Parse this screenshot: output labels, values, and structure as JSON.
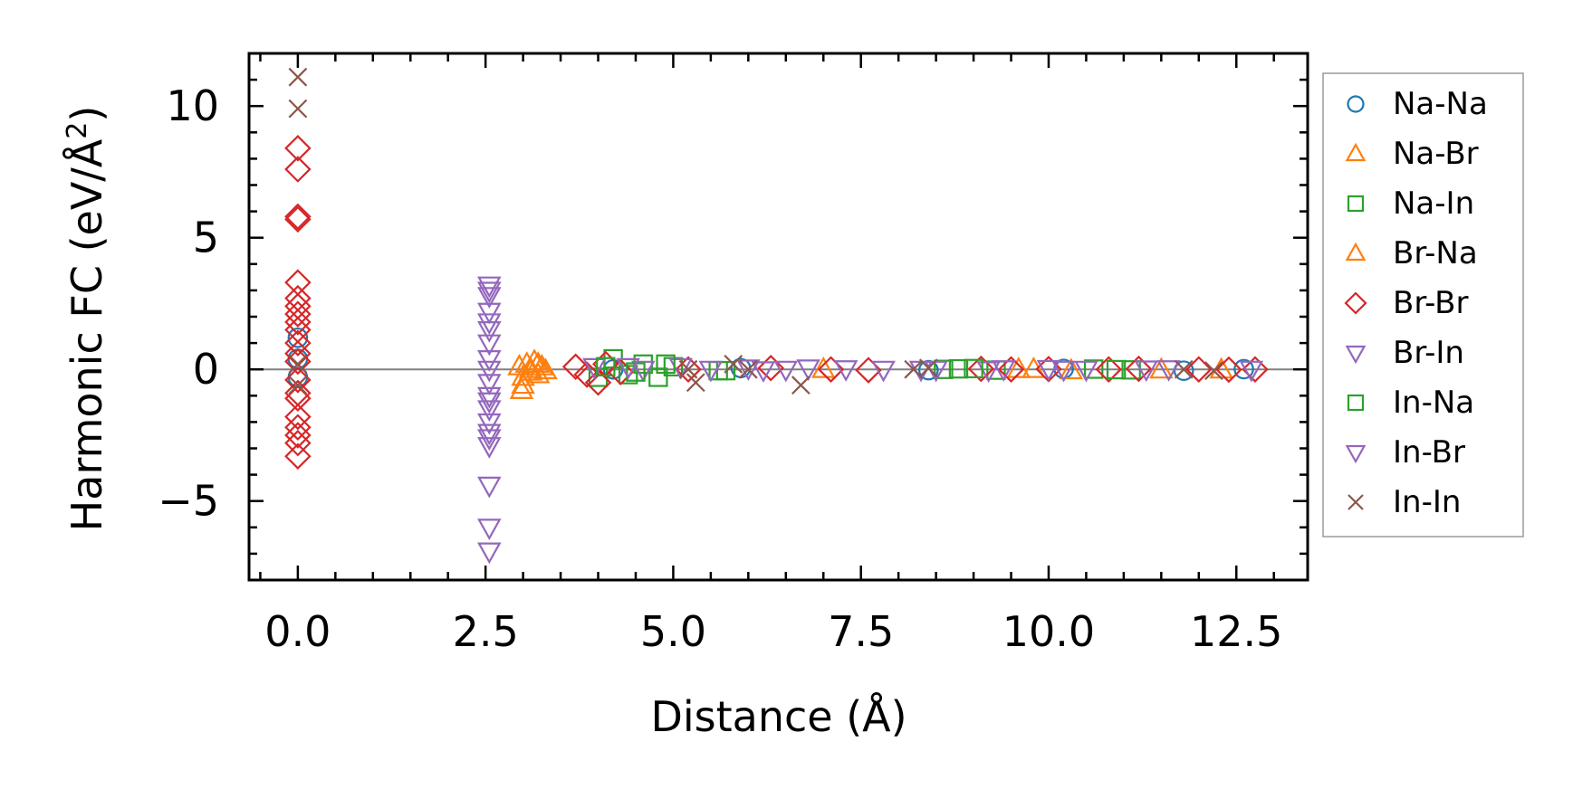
{
  "chart_data": {
    "type": "scatter",
    "xlabel": "Distance (Å)",
    "ylabel_main": "Harmonic FC (eV/Å",
    "ylabel_sup": "2",
    "ylabel_close": ")",
    "xlim": [
      -0.65,
      13.45
    ],
    "ylim": [
      -8,
      12
    ],
    "xticks": [
      0.0,
      2.5,
      5.0,
      7.5,
      10.0,
      12.5
    ],
    "xtick_labels": [
      "0.0",
      "2.5",
      "5.0",
      "7.5",
      "10.0",
      "12.5"
    ],
    "yticks": [
      -5,
      0,
      5,
      10
    ],
    "ytick_labels": [
      "−5",
      "0",
      "5",
      "10"
    ],
    "zero_line": 0,
    "legend_position": "outside-right",
    "series": [
      {
        "name": "Na-Na",
        "marker": "circle",
        "color": "#1f77b4",
        "points": [
          [
            0,
            1.2
          ],
          [
            0,
            0.4
          ],
          [
            0,
            -0.3
          ],
          [
            4.2,
            0.0
          ],
          [
            5.9,
            0.05
          ],
          [
            8.4,
            -0.03
          ],
          [
            10.2,
            0.02
          ],
          [
            11.8,
            -0.05
          ],
          [
            12.6,
            0.01
          ]
        ]
      },
      {
        "name": "Na-Br",
        "marker": "triangle-up",
        "color": "#ff7f0e",
        "points": [
          [
            2.95,
            0.1
          ],
          [
            2.98,
            -0.8
          ],
          [
            3.0,
            -0.3
          ],
          [
            3.05,
            0.2
          ],
          [
            3.1,
            -0.1
          ],
          [
            3.15,
            0.3
          ],
          [
            3.2,
            -0.2
          ],
          [
            3.25,
            0.1
          ],
          [
            3.3,
            -0.05
          ],
          [
            9.6,
            0.0
          ],
          [
            10.3,
            -0.05
          ],
          [
            11.5,
            -0.02
          ]
        ]
      },
      {
        "name": "Na-In",
        "marker": "square",
        "color": "#2ca02c",
        "points": [
          [
            4.0,
            -0.3
          ],
          [
            4.2,
            0.4
          ],
          [
            4.4,
            -0.2
          ],
          [
            4.6,
            0.2
          ],
          [
            4.8,
            -0.3
          ],
          [
            5.0,
            0.1
          ],
          [
            5.6,
            -0.05
          ],
          [
            8.8,
            0.02
          ],
          [
            9.3,
            -0.03
          ],
          [
            10.6,
            0.01
          ],
          [
            11.1,
            -0.02
          ]
        ]
      },
      {
        "name": "Br-Na",
        "marker": "triangle-up",
        "color": "#ff7f0e",
        "points": [
          [
            3.0,
            -0.6
          ],
          [
            3.1,
            0.0
          ],
          [
            3.2,
            0.2
          ],
          [
            7.0,
            0.0
          ],
          [
            9.8,
            0.0
          ],
          [
            12.3,
            -0.02
          ]
        ]
      },
      {
        "name": "Br-Br",
        "marker": "diamond",
        "color": "#d62728",
        "points": [
          [
            0,
            8.4
          ],
          [
            0,
            7.6
          ],
          [
            0,
            5.8
          ],
          [
            0,
            5.7
          ],
          [
            0,
            3.3
          ],
          [
            0,
            2.7
          ],
          [
            0,
            2.4
          ],
          [
            0,
            2.1
          ],
          [
            0,
            1.8
          ],
          [
            0,
            1.5
          ],
          [
            0,
            1.0
          ],
          [
            0,
            0.6
          ],
          [
            0,
            0.3
          ],
          [
            0,
            -0.4
          ],
          [
            0,
            -0.9
          ],
          [
            0,
            -1.1
          ],
          [
            0,
            -1.8
          ],
          [
            0,
            -2.2
          ],
          [
            0,
            -2.5
          ],
          [
            0,
            -2.8
          ],
          [
            0,
            -3.3
          ],
          [
            3.7,
            0.1
          ],
          [
            3.85,
            -0.2
          ],
          [
            4.0,
            -0.5
          ],
          [
            4.1,
            0.2
          ],
          [
            4.3,
            -0.1
          ],
          [
            5.2,
            0.0
          ],
          [
            6.3,
            0.05
          ],
          [
            7.1,
            0.0
          ],
          [
            7.6,
            -0.03
          ],
          [
            9.1,
            0.02
          ],
          [
            9.5,
            0.0
          ],
          [
            10.0,
            0.01
          ],
          [
            10.8,
            0.0
          ],
          [
            11.2,
            0.02
          ],
          [
            12.0,
            0.0
          ],
          [
            12.4,
            -0.01
          ],
          [
            12.75,
            0.0
          ]
        ]
      },
      {
        "name": "Br-In",
        "marker": "triangle-down",
        "color": "#9467bd",
        "points": [
          [
            2.55,
            3.2
          ],
          [
            2.55,
            2.8
          ],
          [
            2.55,
            2.2
          ],
          [
            2.55,
            1.5
          ],
          [
            2.55,
            1.0
          ],
          [
            2.55,
            0.4
          ],
          [
            2.55,
            0.0
          ],
          [
            2.55,
            -0.5
          ],
          [
            2.55,
            -1.0
          ],
          [
            2.55,
            -1.5
          ],
          [
            2.55,
            -2.0
          ],
          [
            2.55,
            -2.4
          ],
          [
            2.55,
            -2.9
          ],
          [
            2.55,
            -4.4
          ],
          [
            2.55,
            -6.0
          ],
          [
            2.55,
            -6.9
          ],
          [
            3.95,
            0.1
          ],
          [
            4.6,
            0.0
          ],
          [
            5.1,
            0.1
          ],
          [
            6.0,
            0.05
          ],
          [
            6.5,
            0.0
          ],
          [
            7.3,
            0.02
          ],
          [
            7.8,
            0.0
          ],
          [
            8.3,
            0.0
          ],
          [
            9.2,
            -0.02
          ],
          [
            10.0,
            0.03
          ],
          [
            10.5,
            0.0
          ],
          [
            11.6,
            0.02
          ],
          [
            12.7,
            0.0
          ]
        ]
      },
      {
        "name": "In-Na",
        "marker": "square",
        "color": "#2ca02c",
        "points": [
          [
            4.1,
            0.1
          ],
          [
            4.5,
            -0.1
          ],
          [
            4.9,
            0.2
          ],
          [
            5.7,
            -0.05
          ],
          [
            8.6,
            0.0
          ],
          [
            9.0,
            0.03
          ],
          [
            10.9,
            -0.01
          ]
        ]
      },
      {
        "name": "In-Br",
        "marker": "triangle-down",
        "color": "#9467bd",
        "points": [
          [
            2.55,
            3.0
          ],
          [
            2.55,
            1.8
          ],
          [
            2.55,
            -1.2
          ],
          [
            2.55,
            -2.6
          ],
          [
            4.4,
            0.1
          ],
          [
            5.5,
            0.0
          ],
          [
            6.2,
            -0.02
          ],
          [
            6.8,
            0.05
          ],
          [
            8.5,
            0.0
          ],
          [
            9.4,
            0.02
          ],
          [
            10.2,
            0.0
          ],
          [
            11.3,
            0.01
          ]
        ]
      },
      {
        "name": "In-In",
        "marker": "x",
        "color": "#8c564b",
        "points": [
          [
            0,
            11.1
          ],
          [
            0,
            9.9
          ],
          [
            0,
            0.2
          ],
          [
            0,
            -0.6
          ],
          [
            5.2,
            0.0
          ],
          [
            5.3,
            -0.5
          ],
          [
            5.8,
            0.2
          ],
          [
            6.0,
            0.0
          ],
          [
            6.7,
            -0.6
          ],
          [
            8.2,
            0.0
          ],
          [
            8.4,
            0.05
          ],
          [
            11.8,
            0.0
          ],
          [
            12.2,
            -0.05
          ]
        ]
      }
    ]
  }
}
